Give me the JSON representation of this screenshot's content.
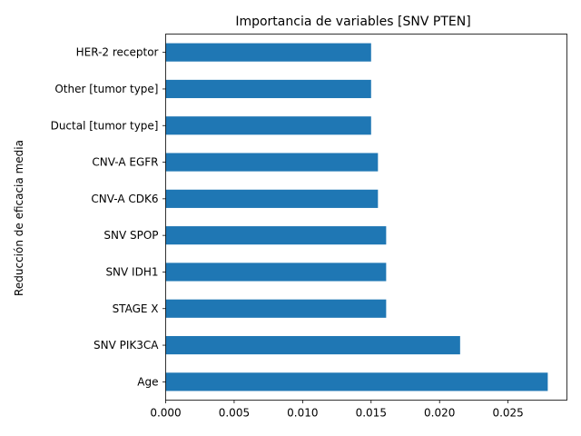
{
  "chart_data": {
    "type": "bar",
    "orientation": "horizontal",
    "title": "Importancia de variables [SNV PTEN]",
    "xlabel": "",
    "ylabel": "Reducción de eficacia media",
    "categories": [
      "Age",
      "SNV PIK3CA",
      "STAGE X",
      "SNV IDH1",
      "SNV SPOP",
      "CNV-A CDK6",
      "CNV-A EGFR",
      "Ductal [tumor type]",
      "Other [tumor type]",
      "HER-2 receptor"
    ],
    "values": [
      0.0279,
      0.0215,
      0.0161,
      0.0161,
      0.0161,
      0.0155,
      0.0155,
      0.015,
      0.015,
      0.015
    ],
    "xlim": [
      0,
      0.0293
    ],
    "xticks": [
      "0.000",
      "0.005",
      "0.010",
      "0.015",
      "0.020",
      "0.025"
    ],
    "xtick_values": [
      0,
      0.005,
      0.01,
      0.015,
      0.02,
      0.025
    ],
    "grid": false,
    "bar_color": "#1f77b4"
  }
}
